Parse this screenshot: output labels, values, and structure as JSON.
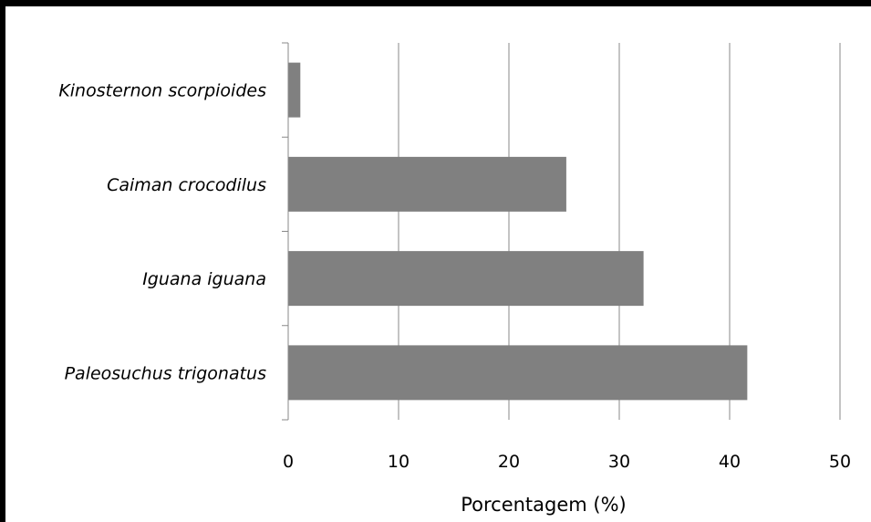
{
  "chart_data": {
    "type": "bar",
    "orientation": "horizontal",
    "categories": [
      "Kinosternon scorpioides",
      "Caiman crocodilus",
      "Iguana iguana",
      "Paleosuchus trigonatus"
    ],
    "values": [
      1.1,
      25.2,
      32.2,
      41.6
    ],
    "xlabel": "Porcentagem (%)",
    "xlim": [
      0,
      50
    ],
    "xticks": [
      "0",
      "10",
      "20",
      "30",
      "40",
      "50"
    ],
    "grid": "vertical",
    "bar_color": "#808080"
  }
}
